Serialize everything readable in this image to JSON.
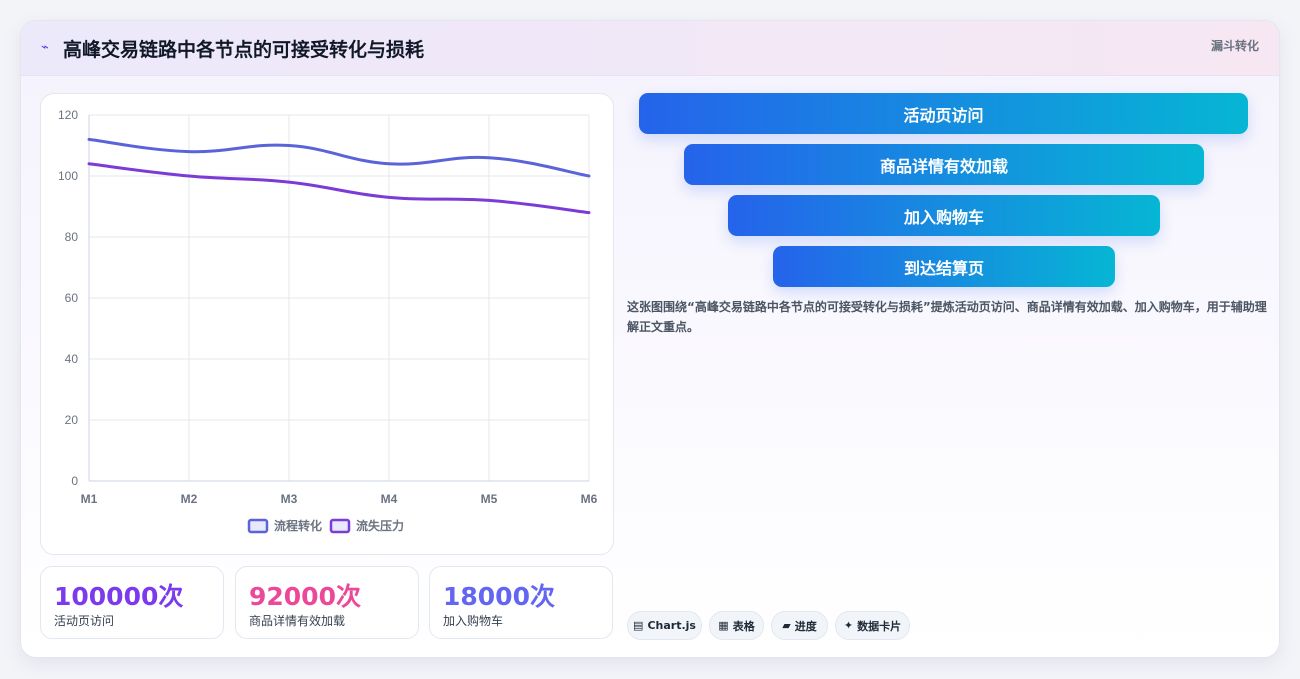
{
  "header": {
    "icon": "chart-line-icon",
    "title": "高峰交易链路中各节点的可接受转化与损耗",
    "tag": "漏斗转化"
  },
  "chart_data": {
    "type": "line",
    "x": [
      "M1",
      "M2",
      "M3",
      "M4",
      "M5",
      "M6"
    ],
    "ylim": [
      0,
      120
    ],
    "yticks": [
      0,
      20,
      40,
      60,
      80,
      100,
      120
    ],
    "grid": true,
    "legend_position": "bottom",
    "series": [
      {
        "name": "流程转化",
        "values": [
          112,
          108,
          110,
          104,
          106,
          100
        ],
        "color": "#5b63d9"
      },
      {
        "name": "流失压力",
        "values": [
          104,
          100,
          98,
          93,
          92,
          88
        ],
        "color": "#7c3ad6"
      }
    ]
  },
  "kpis": [
    {
      "value": "100000次",
      "label": "活动页访问",
      "color": "#7c3aed"
    },
    {
      "value": "92000次",
      "label": "商品详情有效加载",
      "color": "#ec4899"
    },
    {
      "value": "18000次",
      "label": "加入购物车",
      "color": "#6366f1"
    }
  ],
  "funnel": {
    "stages": [
      "活动页访问",
      "商品详情有效加载",
      "加入购物车",
      "到达结算页"
    ]
  },
  "description": "这张图围绕“高峰交易链路中各节点的可接受转化与损耗”提炼活动页访问、商品详情有效加载、加入购物车，用于辅助理解正文重点。",
  "footer_pills": [
    {
      "icon": "chart-icon",
      "glyph": "▤",
      "label": "Chart.js"
    },
    {
      "icon": "table-icon",
      "glyph": "▦",
      "label": "表格"
    },
    {
      "icon": "progress-icon",
      "glyph": "▰",
      "label": "进度"
    },
    {
      "icon": "sparkle-icon",
      "glyph": "✦",
      "label": "数据卡片"
    }
  ]
}
